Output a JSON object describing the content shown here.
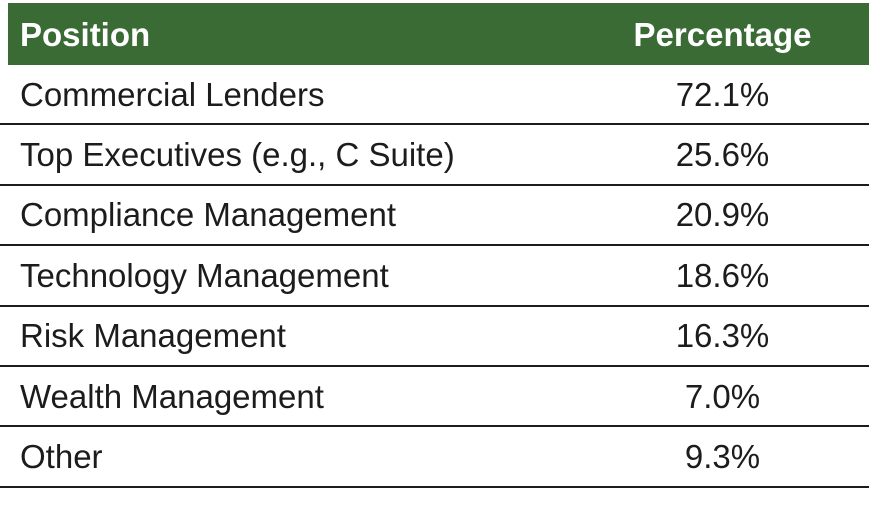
{
  "table": {
    "header": {
      "position_label": "Position",
      "percentage_label": "Percentage"
    },
    "rows": [
      {
        "position": "Commercial Lenders",
        "percentage": "72.1%"
      },
      {
        "position": "Top Executives (e.g., C Suite)",
        "percentage": "25.6%"
      },
      {
        "position": "Compliance Management",
        "percentage": "20.9%"
      },
      {
        "position": "Technology Management",
        "percentage": "18.6%"
      },
      {
        "position": "Risk Management",
        "percentage": "16.3%"
      },
      {
        "position": "Wealth Management",
        "percentage": "7.0%"
      },
      {
        "position": "Other",
        "percentage": "9.3%"
      }
    ]
  },
  "colors": {
    "header_bg": "#3a6b35",
    "header_text": "#ffffff",
    "row_text": "#1c1c1c",
    "border": "#1c1c1c",
    "background": "#ffffff"
  },
  "chart_data": {
    "type": "table",
    "title": "",
    "columns": [
      "Position",
      "Percentage"
    ],
    "rows": [
      [
        "Commercial Lenders",
        72.1
      ],
      [
        "Top Executives (e.g., C Suite)",
        25.6
      ],
      [
        "Compliance Management",
        20.9
      ],
      [
        "Technology Management",
        18.6
      ],
      [
        "Risk Management",
        16.3
      ],
      [
        "Wealth Management",
        7.0
      ],
      [
        "Other",
        9.3
      ]
    ],
    "value_unit": "%"
  }
}
